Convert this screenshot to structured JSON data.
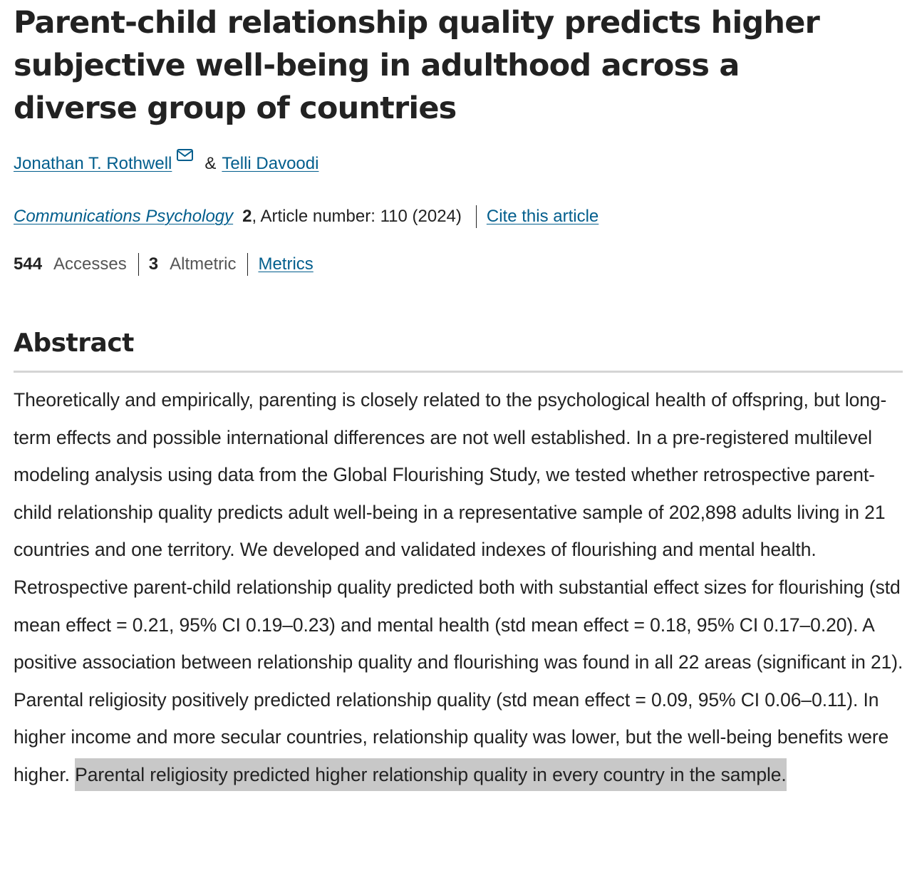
{
  "article": {
    "title": "Parent-child relationship quality predicts higher subjective well-being in adulthood across a diverse group of countries",
    "authors": [
      {
        "name": "Jonathan T. Rothwell",
        "has_email": true
      },
      {
        "name": "Telli Davoodi",
        "has_email": false
      }
    ],
    "author_separator": "&",
    "journal": "Communications Psychology",
    "volume": "2",
    "article_number_text": ", Article number: 110 (2024)",
    "cite_label": "Cite this article"
  },
  "metrics": {
    "accesses_value": "544",
    "accesses_label": "Accesses",
    "altmetric_value": "3",
    "altmetric_label": "Altmetric",
    "metrics_link": "Metrics"
  },
  "abstract": {
    "heading": "Abstract",
    "body": "Theoretically and empirically, parenting is closely related to the psychological health of offspring, but long-term effects and possible international differences are not well established. In a pre-registered multilevel modeling analysis using data from the Global Flourishing Study, we tested whether retrospective parent-child relationship quality predicts adult well-being in a representative sample of 202,898 adults living in 21 countries and one territory. We developed and validated indexes of flourishing and mental health. Retrospective parent-child relationship quality predicted both with substantial effect sizes for flourishing (std mean effect = 0.21, 95% CI 0.19–0.23) and mental health (std mean effect = 0.18, 95% CI 0.17–0.20). A positive association between relationship quality and flourishing was found in all 22 areas (significant in 21). Parental religiosity positively predicted relationship quality (std mean effect = 0.09, 95% CI 0.06–0.11). In higher income and more secular countries, relationship quality was lower, but the well-being benefits were higher. ",
    "highlighted": "Parental religiosity predicted higher relationship quality in every country in the sample."
  },
  "colors": {
    "link": "#025e8d",
    "text": "#222222",
    "highlight": "#c8c8c8",
    "rule": "#d5d5d5"
  },
  "icons": {
    "email": "mail-icon"
  }
}
